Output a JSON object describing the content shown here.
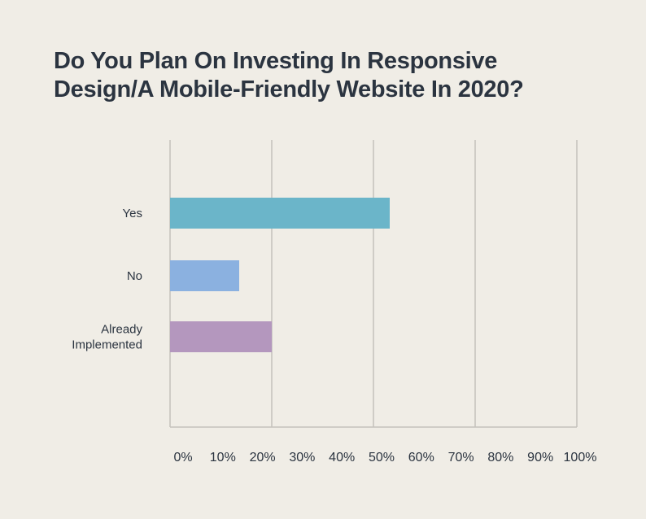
{
  "chart_data": {
    "type": "bar",
    "orientation": "horizontal",
    "title": "Do You Plan On Investing In Responsive Design/A Mobile-Friendly Website In 2020?",
    "categories": [
      {
        "label": [
          "Yes"
        ],
        "value": 54,
        "color": "#6bb5c9"
      },
      {
        "label": [
          "No"
        ],
        "value": 17,
        "color": "#8bb1e0"
      },
      {
        "label": [
          "Already",
          "Implemented"
        ],
        "value": 25,
        "color": "#b497be"
      }
    ],
    "xlim": [
      0,
      100
    ],
    "xticks": [
      "0%",
      "10%",
      "20%",
      "30%",
      "40%",
      "50%",
      "60%",
      "70%",
      "80%",
      "90%",
      "100%"
    ],
    "gridlines": [
      0,
      25,
      50,
      75,
      100
    ],
    "grid_color": "#c4c1bb"
  }
}
